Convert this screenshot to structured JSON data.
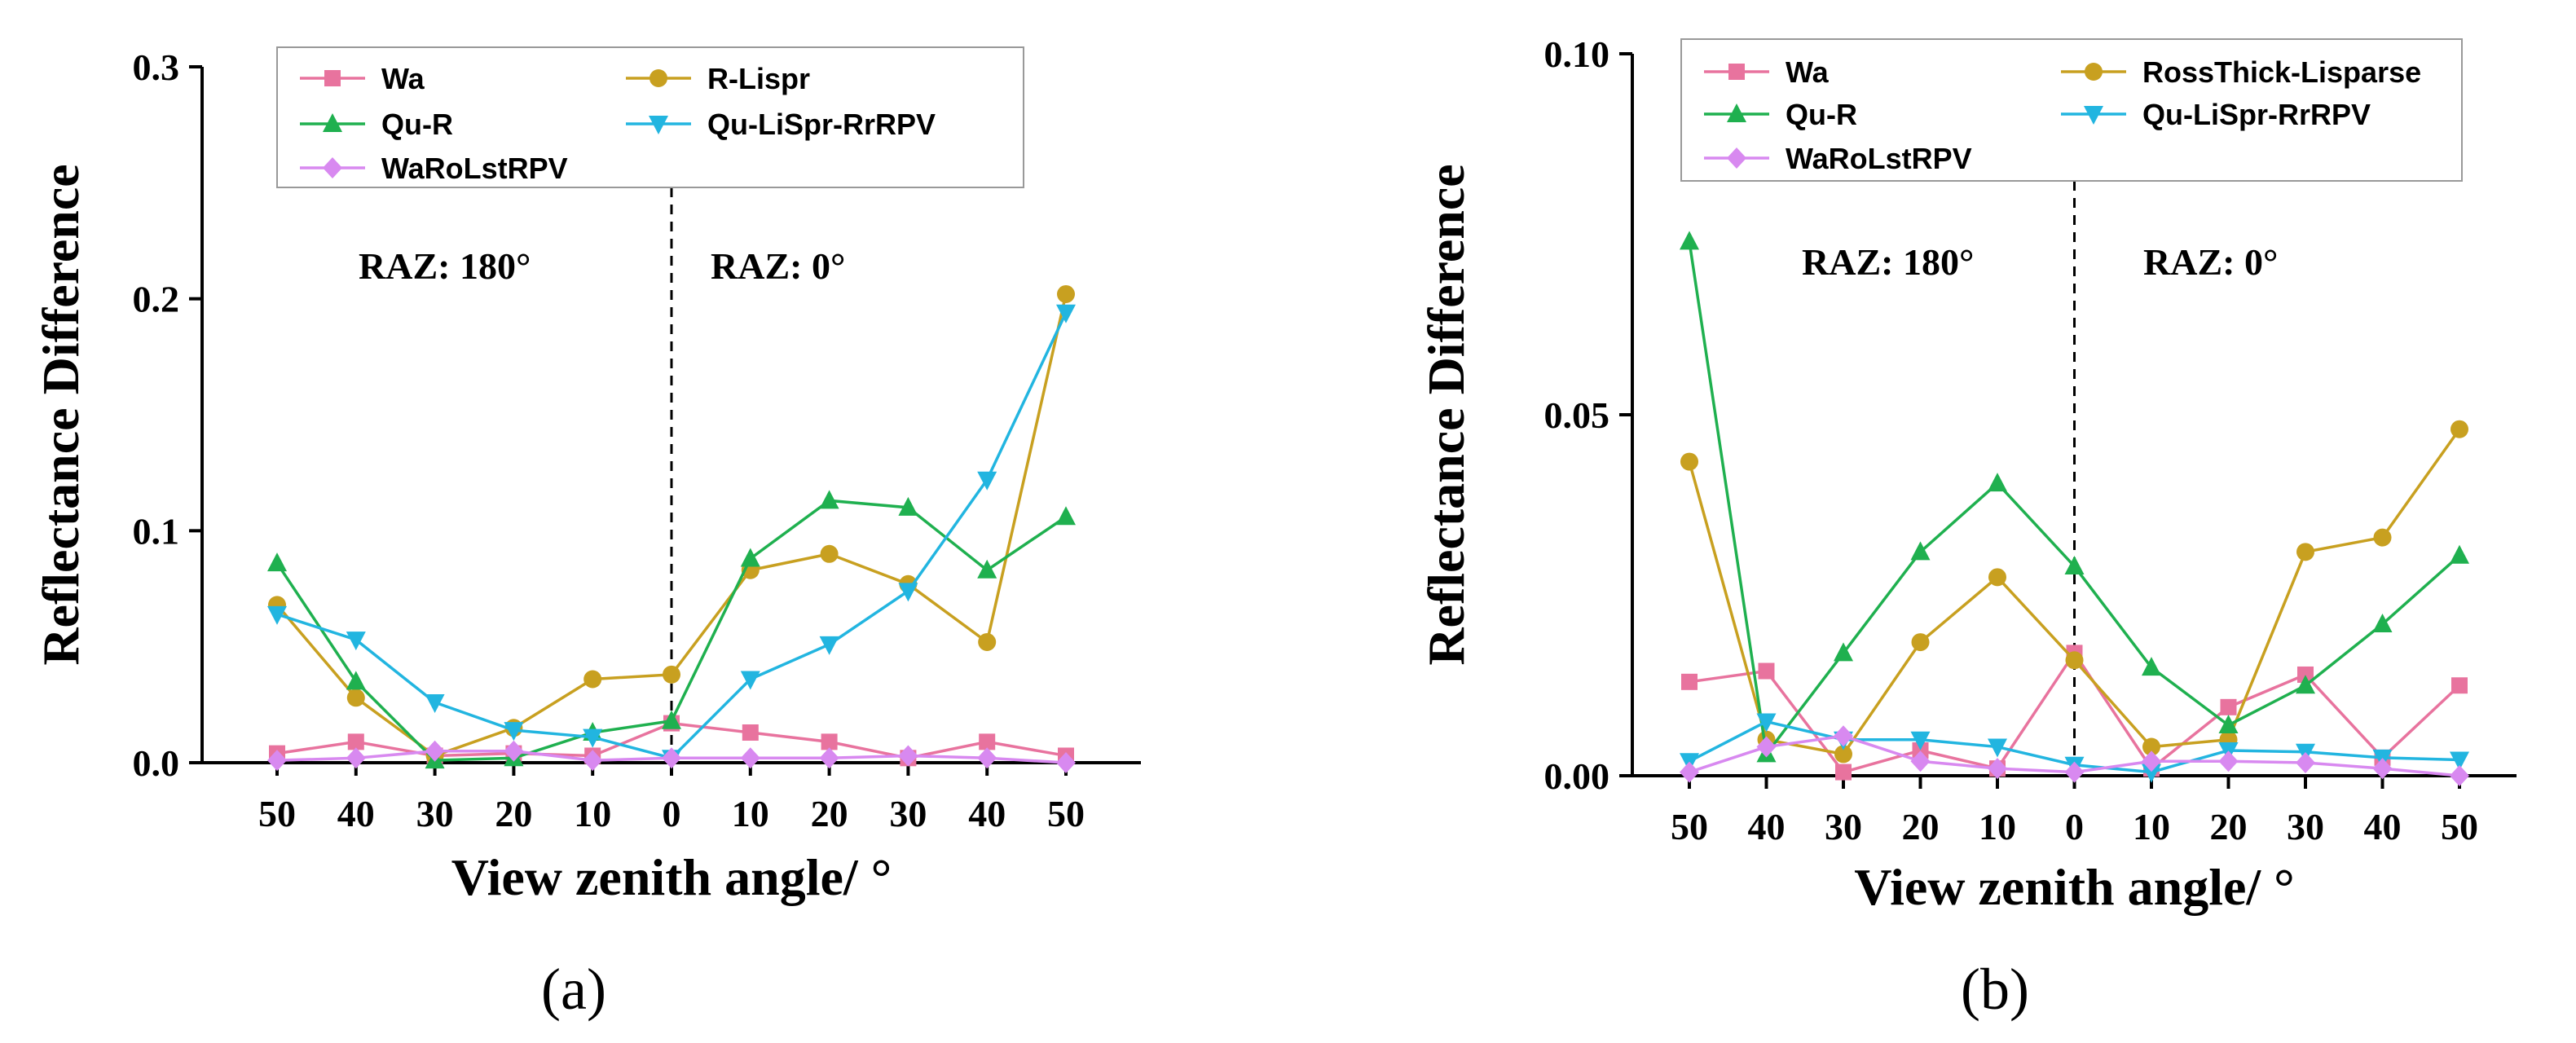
{
  "chart_data": [
    {
      "type": "line",
      "panel_label": "(a)",
      "xlabel": "View zenith angle/ °",
      "ylabel": "Reflectance Difference",
      "categories": [
        "50",
        "40",
        "30",
        "20",
        "10",
        "0",
        "10",
        "20",
        "30",
        "40",
        "50"
      ],
      "ylim": [
        0,
        0.3
      ],
      "yticks": [
        "0.0",
        "0.1",
        "0.2",
        "0.3"
      ],
      "annotations": [
        "RAZ:  180°",
        "RAZ:  0°"
      ],
      "divider_at_category": 5,
      "legend_position": "top",
      "grid": false,
      "series": [
        {
          "name": "Wa",
          "color": "#e8739e",
          "marker": "square",
          "values": [
            0.004,
            0.009,
            0.003,
            0.004,
            0.003,
            0.017,
            0.013,
            0.009,
            0.002,
            0.009,
            0.003
          ]
        },
        {
          "name": "R-Lispr",
          "color": "#c8a020",
          "marker": "circle",
          "values": [
            0.068,
            0.028,
            0.003,
            0.015,
            0.036,
            0.038,
            0.083,
            0.09,
            0.077,
            0.052,
            0.202
          ]
        },
        {
          "name": "Qu-R",
          "color": "#1fb04f",
          "marker": "triangle-up",
          "values": [
            0.086,
            0.035,
            0.001,
            0.002,
            0.013,
            0.018,
            0.088,
            0.113,
            0.11,
            0.083,
            0.106
          ]
        },
        {
          "name": "Qu-LiSpr-RrRPV",
          "color": "#22b5e0",
          "marker": "triangle-down",
          "values": [
            0.064,
            0.053,
            0.026,
            0.014,
            0.011,
            0.002,
            0.036,
            0.051,
            0.074,
            0.122,
            0.194
          ]
        },
        {
          "name": "WaRoLstRPV",
          "color": "#d889f0",
          "marker": "diamond",
          "values": [
            0.001,
            0.002,
            0.005,
            0.005,
            0.001,
            0.002,
            0.002,
            0.002,
            0.003,
            0.002,
            0.0
          ]
        }
      ]
    },
    {
      "type": "line",
      "panel_label": "(b)",
      "xlabel": "View zenith angle/ °",
      "ylabel": "Reflectance Difference",
      "categories": [
        "50",
        "40",
        "30",
        "20",
        "10",
        "0",
        "10",
        "20",
        "30",
        "40",
        "50"
      ],
      "ylim": [
        0,
        0.1
      ],
      "yticks": [
        "0.00",
        "0.05",
        "0.10"
      ],
      "annotations": [
        "RAZ:  180°",
        "RAZ:  0°"
      ],
      "divider_at_category": 5,
      "legend_position": "top",
      "grid": false,
      "series": [
        {
          "name": "Wa",
          "color": "#e8739e",
          "marker": "square",
          "values": [
            0.013,
            0.0145,
            0.0005,
            0.0035,
            0.001,
            0.017,
            0.001,
            0.0095,
            0.014,
            0.0025,
            0.0125
          ]
        },
        {
          "name": "RossThick-Lisparse",
          "color": "#c8a020",
          "marker": "circle",
          "values": [
            0.0435,
            0.005,
            0.003,
            0.0185,
            0.0275,
            0.016,
            0.004,
            0.005,
            0.031,
            0.033,
            0.048
          ]
        },
        {
          "name": "Qu-R",
          "color": "#1fb04f",
          "marker": "triangle-up",
          "values": [
            0.074,
            0.003,
            0.017,
            0.031,
            0.0405,
            0.029,
            0.015,
            0.007,
            0.0125,
            0.021,
            0.0305
          ]
        },
        {
          "name": "Qu-LiSpr-RrRPV",
          "color": "#22b5e0",
          "marker": "triangle-down",
          "values": [
            0.002,
            0.0075,
            0.005,
            0.005,
            0.004,
            0.0015,
            0.0005,
            0.0035,
            0.0033,
            0.0025,
            0.0022
          ]
        },
        {
          "name": "WaRoLstRPV",
          "color": "#d889f0",
          "marker": "diamond",
          "values": [
            0.0005,
            0.004,
            0.0055,
            0.002,
            0.001,
            0.0005,
            0.002,
            0.002,
            0.0018,
            0.001,
            0.0
          ]
        }
      ]
    }
  ]
}
